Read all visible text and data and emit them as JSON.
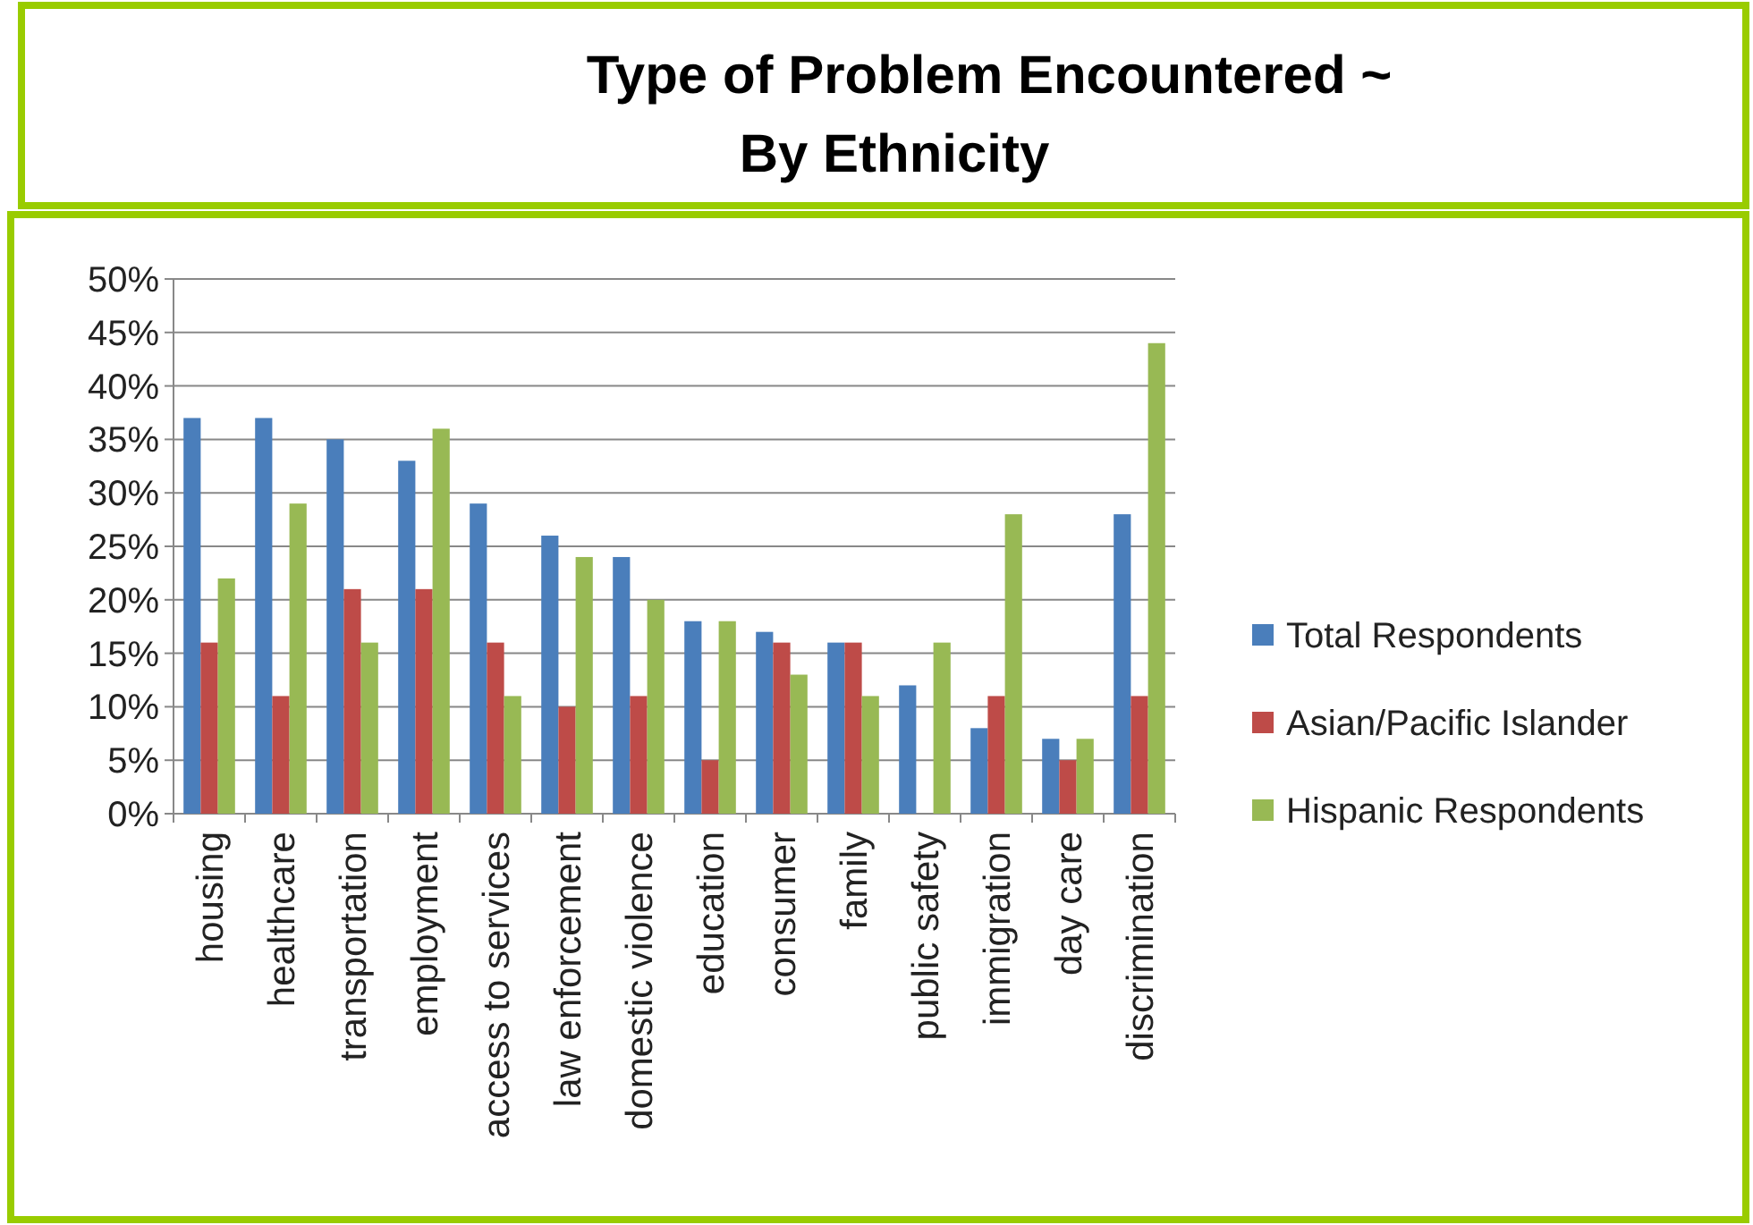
{
  "chart_data": {
    "type": "bar",
    "title": "Type of Problem Encountered ~\nBy Ethnicity",
    "categories": [
      "housing",
      "healthcare",
      "transportation",
      "employment",
      "access to services",
      "law enforcement",
      "domestic violence",
      "education",
      "consumer",
      "family",
      "public safety",
      "immigration",
      "day care",
      "discrimination"
    ],
    "series": [
      {
        "name": "Total Respondents",
        "color": "#4a7ebb",
        "values": [
          37,
          37,
          35,
          33,
          29,
          26,
          24,
          18,
          17,
          16,
          12,
          8,
          7,
          28
        ]
      },
      {
        "name": "Asian/Pacific Islander",
        "color": "#be4b48",
        "values": [
          16,
          11,
          21,
          21,
          16,
          10,
          11,
          5,
          16,
          16,
          0,
          11,
          5,
          11
        ]
      },
      {
        "name": "Hispanic Respondents",
        "color": "#98b954",
        "values": [
          22,
          29,
          16,
          36,
          11,
          24,
          20,
          18,
          13,
          11,
          16,
          28,
          7,
          44
        ]
      }
    ],
    "ylim": [
      0,
      50
    ],
    "yticks": [
      {
        "value": 0,
        "label": "0%"
      },
      {
        "value": 5,
        "label": "5%"
      },
      {
        "value": 10,
        "label": "10%"
      },
      {
        "value": 15,
        "label": "15%"
      },
      {
        "value": 20,
        "label": "20%"
      },
      {
        "value": 25,
        "label": "25%"
      },
      {
        "value": 30,
        "label": "30%"
      },
      {
        "value": 35,
        "label": "35%"
      },
      {
        "value": 40,
        "label": "40%"
      },
      {
        "value": 45,
        "label": "45%"
      },
      {
        "value": 50,
        "label": "50%"
      }
    ],
    "grid": "y",
    "legend": "right"
  }
}
